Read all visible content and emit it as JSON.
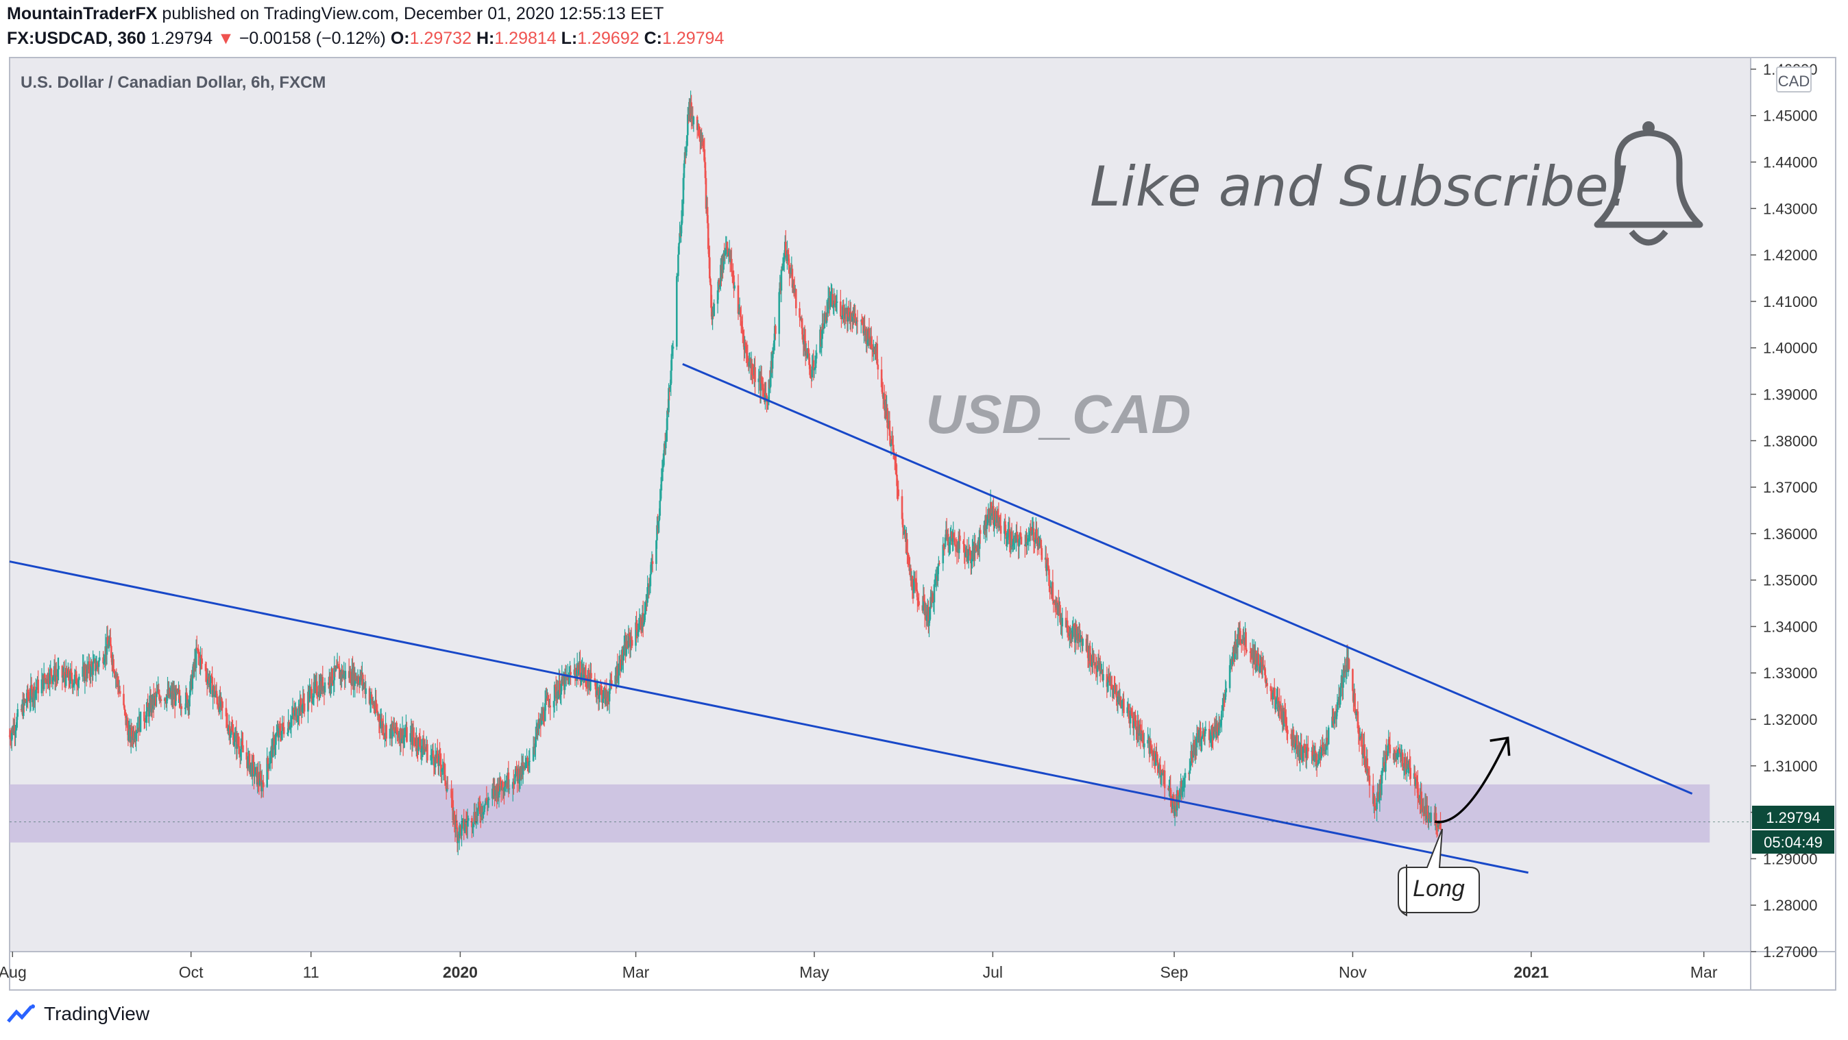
{
  "header": {
    "author": "MountainTraderFX",
    "published": "published on TradingView.com, December 01, 2020 12:55:13 EET",
    "symbol": "FX:USDCAD, 360",
    "price": "1.29794",
    "arrow": "▼",
    "change": "−0.00158 (−0.12%)",
    "o_label": "O:",
    "o_value": "1.29732",
    "h_label": "H:",
    "h_value": "1.29814",
    "l_label": "L:",
    "l_value": "1.29692",
    "c_label": "C:",
    "c_value": "1.29794"
  },
  "chart_title": "U.S. Dollar / Canadian Dollar, 6h, FXCM",
  "watermark": "USD_CAD",
  "promo_text": "Like and Subscribe!",
  "promo_icon": "bell-icon",
  "currency_badge": "CAD",
  "long_label": "Long",
  "price_tag": "1.29794",
  "countdown_tag": "05:04:49",
  "footer_brand": "TradingView",
  "colors": {
    "up": "#26a69a",
    "down": "#ef5350",
    "trendline": "#1848c8",
    "zone": "#c9bedf",
    "background": "#e9e9ee",
    "price_tag_bg": "#0c4a3a"
  },
  "chart_data": {
    "type": "candlestick",
    "title": "U.S. Dollar / Canadian Dollar, 6h, FXCM",
    "x_ticks": [
      "Aug",
      "Oct",
      "11",
      "2020",
      "Mar",
      "May",
      "Jul",
      "Sep",
      "Nov",
      "2021",
      "Mar"
    ],
    "x_tick_dates": [
      "2019-08-01",
      "2019-10-01",
      "2019-11-11",
      "2020-01-01",
      "2020-03-01",
      "2020-05-01",
      "2020-07-01",
      "2020-09-01",
      "2020-11-01",
      "2021-01-01",
      "2021-03-01"
    ],
    "y_ticks": [
      "1.27000",
      "1.28000",
      "1.29000",
      "1.30000",
      "1.31000",
      "1.32000",
      "1.33000",
      "1.34000",
      "1.35000",
      "1.36000",
      "1.37000",
      "1.38000",
      "1.39000",
      "1.40000",
      "1.41000",
      "1.42000",
      "1.43000",
      "1.44000",
      "1.45000",
      "1.46000"
    ],
    "ylim": [
      1.27,
      1.4625
    ],
    "xlim": [
      "2019-07-31",
      "2021-03-17"
    ],
    "close_path": [
      [
        "2019-07-31",
        1.3165
      ],
      [
        "2019-08-06",
        1.3245
      ],
      [
        "2019-08-14",
        1.33
      ],
      [
        "2019-08-22",
        1.3285
      ],
      [
        "2019-08-30",
        1.3318
      ],
      [
        "2019-09-03",
        1.3365
      ],
      [
        "2019-09-10",
        1.316
      ],
      [
        "2019-09-20",
        1.3255
      ],
      [
        "2019-09-30",
        1.324
      ],
      [
        "2019-10-03",
        1.3345
      ],
      [
        "2019-10-15",
        1.317
      ],
      [
        "2019-10-25",
        1.306
      ],
      [
        "2019-10-30",
        1.316
      ],
      [
        "2019-11-11",
        1.3255
      ],
      [
        "2019-11-20",
        1.33
      ],
      [
        "2019-11-28",
        1.329
      ],
      [
        "2019-12-06",
        1.318
      ],
      [
        "2019-12-16",
        1.316
      ],
      [
        "2019-12-26",
        1.31
      ],
      [
        "2019-12-31",
        1.2955
      ],
      [
        "2020-01-07",
        1.3
      ],
      [
        "2020-01-15",
        1.306
      ],
      [
        "2020-01-23",
        1.309
      ],
      [
        "2020-01-31",
        1.324
      ],
      [
        "2020-02-10",
        1.331
      ],
      [
        "2020-02-20",
        1.3245
      ],
      [
        "2020-02-27",
        1.336
      ],
      [
        "2020-03-04",
        1.342
      ],
      [
        "2020-03-09",
        1.365
      ],
      [
        "2020-03-13",
        1.395
      ],
      [
        "2020-03-19",
        1.452
      ],
      [
        "2020-03-24",
        1.445
      ],
      [
        "2020-03-27",
        1.406
      ],
      [
        "2020-04-01",
        1.423
      ],
      [
        "2020-04-08",
        1.398
      ],
      [
        "2020-04-15",
        1.389
      ],
      [
        "2020-04-21",
        1.422
      ],
      [
        "2020-04-30",
        1.394
      ],
      [
        "2020-05-06",
        1.41
      ],
      [
        "2020-05-14",
        1.407
      ],
      [
        "2020-05-22",
        1.4
      ],
      [
        "2020-05-28",
        1.377
      ],
      [
        "2020-06-03",
        1.35
      ],
      [
        "2020-06-09",
        1.342
      ],
      [
        "2020-06-15",
        1.36
      ],
      [
        "2020-06-24",
        1.355
      ],
      [
        "2020-06-30",
        1.365
      ],
      [
        "2020-07-08",
        1.358
      ],
      [
        "2020-07-16",
        1.36
      ],
      [
        "2020-07-24",
        1.342
      ],
      [
        "2020-07-31",
        1.337
      ],
      [
        "2020-08-07",
        1.33
      ],
      [
        "2020-08-17",
        1.321
      ],
      [
        "2020-08-27",
        1.31
      ],
      [
        "2020-09-01",
        1.301
      ],
      [
        "2020-09-09",
        1.316
      ],
      [
        "2020-09-16",
        1.318
      ],
      [
        "2020-09-23",
        1.339
      ],
      [
        "2020-09-30",
        1.332
      ],
      [
        "2020-10-07",
        1.322
      ],
      [
        "2020-10-14",
        1.313
      ],
      [
        "2020-10-21",
        1.312
      ],
      [
        "2020-10-27",
        1.323
      ],
      [
        "2020-10-30",
        1.333
      ],
      [
        "2020-11-04",
        1.315
      ],
      [
        "2020-11-09",
        1.301
      ],
      [
        "2020-11-13",
        1.314
      ],
      [
        "2020-11-20",
        1.31
      ],
      [
        "2020-11-26",
        1.3
      ],
      [
        "2020-11-30",
        1.2985
      ],
      [
        "2020-12-01",
        1.29794
      ]
    ],
    "trendlines": [
      {
        "from": [
          "2019-07-31",
          1.354
        ],
        "to": [
          "2020-12-31",
          1.287
        ]
      },
      {
        "from": [
          "2020-03-17",
          1.3965
        ],
        "to": [
          "2021-02-25",
          1.304
        ]
      }
    ],
    "zone": {
      "from": "2019-07-31",
      "to": "2021-03-03",
      "y_low": 1.2935,
      "y_high": 1.306
    },
    "projection_arrow": {
      "from": [
        "2020-11-29",
        1.298
      ],
      "to": [
        "2020-12-24",
        1.316
      ]
    },
    "last_price": 1.29794
  }
}
